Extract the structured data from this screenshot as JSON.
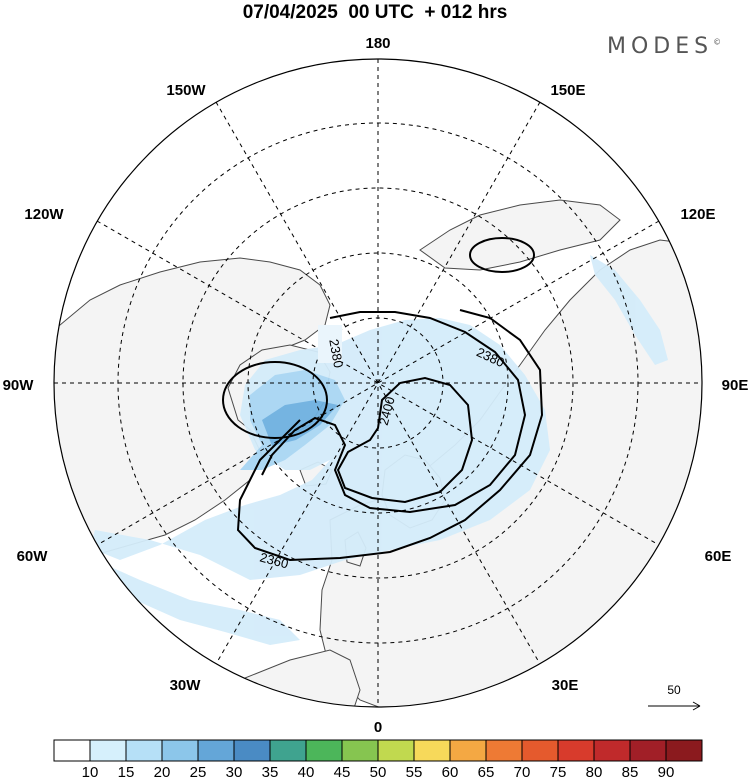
{
  "title": {
    "date": "07/04/2025",
    "run": "00 UTC",
    "lead": "+ 012 hrs"
  },
  "brand": "MODES",
  "brand_mark": "©",
  "longitude_labels": {
    "top": "180",
    "bottom": "0",
    "left": "90W",
    "right": "90E",
    "upper_left_1": "150W",
    "upper_left_2": "120W",
    "lower_left_1": "60W",
    "lower_left_2": "30W",
    "upper_right_1": "150E",
    "upper_right_2": "120E",
    "lower_right_1": "60E",
    "lower_right_2": "30E"
  },
  "contour_labels": {
    "c2380_top": "2380",
    "c2380_right": "2380",
    "c2400": "2400",
    "c2360": "2360"
  },
  "vector_reference": "50",
  "colorbar": {
    "labels": [
      "10",
      "15",
      "20",
      "25",
      "30",
      "35",
      "40",
      "45",
      "50",
      "55",
      "60",
      "65",
      "70",
      "75",
      "80",
      "85",
      "90"
    ],
    "colors": [
      "#ffffff",
      "#d6f0fc",
      "#b6e0f7",
      "#8cc6ea",
      "#64a6d8",
      "#4a8bc4",
      "#3fa38f",
      "#4cb65a",
      "#86c550",
      "#c1d94f",
      "#f7d95a",
      "#f4a843",
      "#ee7a34",
      "#e55a2d",
      "#d83b2c",
      "#c02a2b",
      "#a11f27",
      "#8b1a1e"
    ]
  },
  "colors": {
    "land": "#f4f4f4",
    "coast": "#4a4a4a",
    "wind_light": "#d4ecfa",
    "wind_mid": "#a9d6f3",
    "wind_strong": "#6fb1e0"
  }
}
